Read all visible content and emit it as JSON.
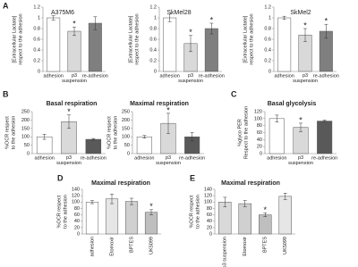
{
  "chart_data": [
    {
      "type": "bar",
      "panel": "A",
      "title": "A375M6",
      "ylabel": [
        "[Extracellular Lactate]",
        "respect to the adhesion"
      ],
      "categories": [
        "adhesion",
        "p3 suspension",
        "re-adhesion"
      ],
      "values": [
        1.0,
        0.75,
        0.9
      ],
      "errors": [
        0.04,
        0.08,
        0.12
      ],
      "significance": [
        null,
        "*",
        null
      ],
      "colors": [
        "#ffffff",
        "#d9d9d9",
        "#7f7f7f"
      ],
      "ylim": [
        0,
        1.2
      ],
      "yticks": [
        0,
        0.2,
        0.4,
        0.6,
        0.8,
        1,
        1.2
      ]
    },
    {
      "type": "bar",
      "title": "SkMel28",
      "ylabel": [
        "[Extracellular Lactate]",
        "respect to the adhesion"
      ],
      "categories": [
        "adhesion",
        "p3 suspension",
        "re-adhesion"
      ],
      "values": [
        1.0,
        0.52,
        0.8
      ],
      "errors": [
        0.07,
        0.15,
        0.1
      ],
      "significance": [
        null,
        "*",
        "*"
      ],
      "colors": [
        "#ffffff",
        "#d9d9d9",
        "#7f7f7f"
      ],
      "ylim": [
        0,
        1.2
      ],
      "yticks": [
        0,
        0.2,
        0.4,
        0.6,
        0.8,
        1,
        1.2
      ]
    },
    {
      "type": "bar",
      "title": "SkMel2",
      "ylabel": [
        "[Extracellular Lactate]",
        "respect to the adhesion"
      ],
      "categories": [
        "adhesion",
        "p3 suspension",
        "re-adhesion"
      ],
      "values": [
        1.0,
        0.68,
        0.75
      ],
      "errors": [
        0.03,
        0.12,
        0.13
      ],
      "significance": [
        null,
        "*",
        "*"
      ],
      "colors": [
        "#ffffff",
        "#d9d9d9",
        "#7f7f7f"
      ],
      "ylim": [
        0,
        1.2
      ],
      "yticks": [
        0,
        0.2,
        0.4,
        0.6,
        0.8,
        1,
        1.2
      ]
    },
    {
      "type": "bar",
      "panel": "B",
      "title": "Basal respiration",
      "ylabel": [
        "%OCR respect",
        "to the adhesion"
      ],
      "categories": [
        "adhesion",
        "p3 suspension",
        "re-adhesion"
      ],
      "values": [
        100,
        190,
        85
      ],
      "errors": [
        15,
        40,
        5
      ],
      "significance": [
        null,
        "*",
        null
      ],
      "colors": [
        "#ffffff",
        "#d9d9d9",
        "#595959"
      ],
      "ylim": [
        0,
        250
      ],
      "yticks": [
        0,
        50,
        100,
        150,
        200,
        250
      ]
    },
    {
      "type": "bar",
      "title": "Maximal respiration",
      "ylabel": [
        "%OCR respect",
        "to the adhesion"
      ],
      "categories": [
        "adhesion",
        "p3 suspension",
        "re-adhesion"
      ],
      "values": [
        100,
        180,
        100
      ],
      "errors": [
        8,
        60,
        25
      ],
      "significance": [
        null,
        "*",
        null
      ],
      "colors": [
        "#ffffff",
        "#d9d9d9",
        "#595959"
      ],
      "ylim": [
        0,
        250
      ],
      "yticks": [
        0,
        50,
        100,
        150,
        200,
        250
      ]
    },
    {
      "type": "bar",
      "panel": "C",
      "title": "Basal glycolysis",
      "ylabel": [
        "%glyco PER",
        "Respect to the adhesion"
      ],
      "categories": [
        "adhesion",
        "p3 suspension",
        "re-adhesion"
      ],
      "values": [
        100,
        75,
        93
      ],
      "errors": [
        10,
        12,
        3
      ],
      "significance": [
        null,
        "*",
        null
      ],
      "colors": [
        "#ffffff",
        "#d9d9d9",
        "#595959"
      ],
      "ylim": [
        0,
        120
      ],
      "yticks": [
        0,
        20,
        40,
        60,
        80,
        100,
        120
      ]
    },
    {
      "type": "bar",
      "panel": "D",
      "title": "Maximal respiration",
      "ylabel": [
        "%OCR respect",
        "to the adhesion"
      ],
      "categories": [
        "adhesion",
        "Etomoxir",
        "BPTES",
        "UK5099"
      ],
      "values": [
        100,
        110,
        102,
        68
      ],
      "errors": [
        5,
        15,
        10,
        8
      ],
      "significance": [
        null,
        null,
        null,
        "*"
      ],
      "colors": [
        "#ffffff",
        "#e6e6e6",
        "#d0d0d0",
        "#bfbfbf"
      ],
      "ylim": [
        0,
        140
      ],
      "yticks": [
        0,
        20,
        40,
        60,
        80,
        100,
        120,
        140
      ]
    },
    {
      "type": "bar",
      "panel": "E",
      "title": "Maximal respiration",
      "ylabel": [
        "%OCR respect",
        "to the adhesion"
      ],
      "categories": [
        "p3 suspension",
        "Etomoxir",
        "BPTES",
        "UK5099"
      ],
      "values": [
        100,
        95,
        60,
        118
      ],
      "errors": [
        15,
        10,
        6,
        10
      ],
      "significance": [
        null,
        null,
        "*",
        null
      ],
      "colors": [
        "#d9d9d9",
        "#d0d0d0",
        "#bfbfbf",
        "#e6e6e6"
      ],
      "ylim": [
        0,
        140
      ],
      "yticks": [
        0,
        20,
        40,
        60,
        80,
        100,
        120,
        140
      ]
    }
  ]
}
